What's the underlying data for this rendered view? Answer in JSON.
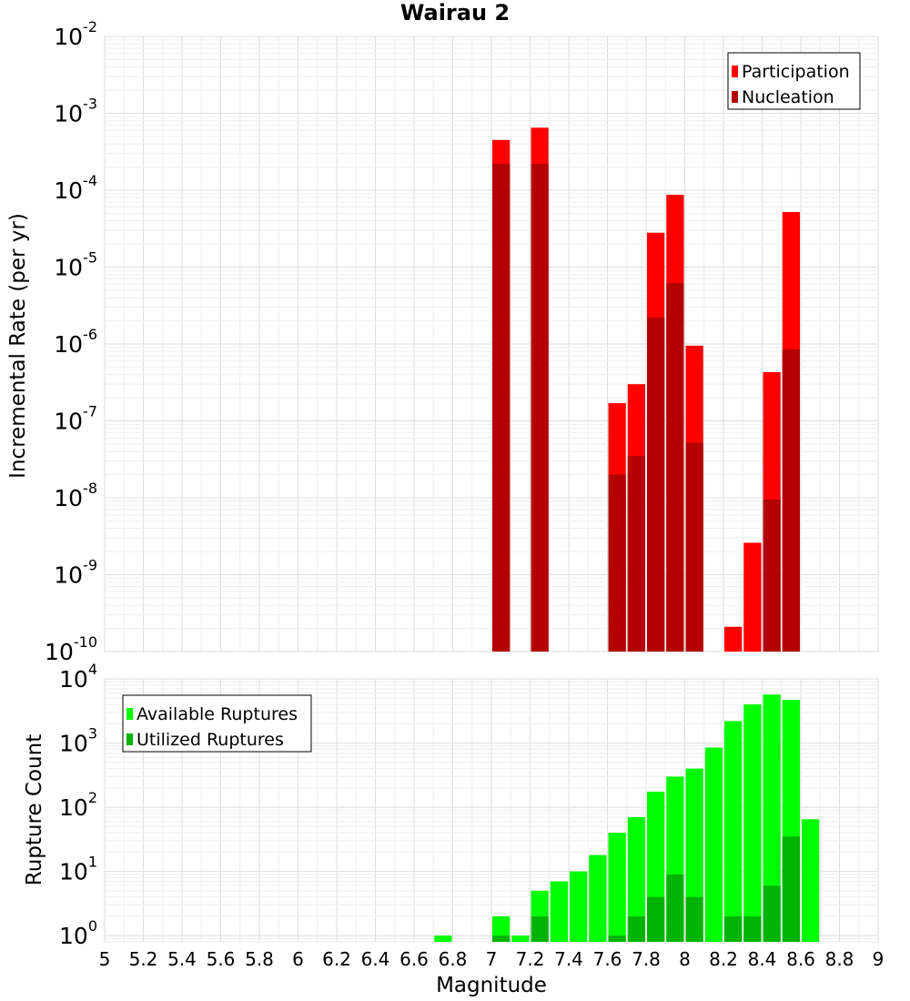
{
  "chart_data": [
    {
      "type": "bar",
      "title": "Wairau 2",
      "xlabel": "",
      "ylabel": "Incremental Rate (per yr)",
      "y_scale": "log",
      "ylim": [
        1e-10,
        0.01
      ],
      "y_ticks": [
        {
          "base": "10",
          "exp": "-2"
        },
        {
          "base": "10",
          "exp": "-3"
        },
        {
          "base": "10",
          "exp": "-4"
        },
        {
          "base": "10",
          "exp": "-5"
        },
        {
          "base": "10",
          "exp": "-6"
        },
        {
          "base": "10",
          "exp": "-7"
        },
        {
          "base": "10",
          "exp": "-8"
        },
        {
          "base": "10",
          "exp": "-9"
        },
        {
          "base": "10",
          "exp": "-10"
        }
      ],
      "xlim": [
        5,
        9
      ],
      "grid": true,
      "legend_position": "top-right",
      "series": [
        {
          "name": "Participation",
          "color": "#ff0000",
          "points": [
            {
              "x": 7.05,
              "y": 0.00045
            },
            {
              "x": 7.25,
              "y": 0.00065
            },
            {
              "x": 7.65,
              "y": 1.7e-07
            },
            {
              "x": 7.75,
              "y": 3e-07
            },
            {
              "x": 7.85,
              "y": 2.8e-05
            },
            {
              "x": 7.95,
              "y": 8.7e-05
            },
            {
              "x": 8.05,
              "y": 9.5e-07
            },
            {
              "x": 8.25,
              "y": 2.1e-10
            },
            {
              "x": 8.35,
              "y": 2.6e-09
            },
            {
              "x": 8.45,
              "y": 4.3e-07
            },
            {
              "x": 8.55,
              "y": 5.2e-05
            }
          ]
        },
        {
          "name": "Nucleation",
          "color": "#b30000",
          "points": [
            {
              "x": 7.05,
              "y": 0.00022
            },
            {
              "x": 7.25,
              "y": 0.00022
            },
            {
              "x": 7.65,
              "y": 2e-08
            },
            {
              "x": 7.75,
              "y": 3.5e-08
            },
            {
              "x": 7.85,
              "y": 2.2e-06
            },
            {
              "x": 7.95,
              "y": 6.2e-06
            },
            {
              "x": 8.05,
              "y": 5.2e-08
            },
            {
              "x": 8.45,
              "y": 9.5e-09
            },
            {
              "x": 8.55,
              "y": 8.5e-07
            }
          ]
        }
      ]
    },
    {
      "type": "bar",
      "title": "",
      "xlabel": "Magnitude",
      "ylabel": "Rupture Count",
      "y_scale": "log",
      "ylim": [
        0.8,
        10000
      ],
      "y_ticks": [
        {
          "value": 10000,
          "base": "10",
          "exp": "4"
        },
        {
          "value": 1000,
          "base": "10",
          "exp": "3"
        },
        {
          "value": 100,
          "base": "10",
          "exp": "2"
        },
        {
          "value": 10,
          "base": "10",
          "exp": "1"
        },
        {
          "value": 1,
          "base": "10",
          "exp": "0"
        }
      ],
      "xlim": [
        5,
        9
      ],
      "x_ticks": [
        "5",
        "5.2",
        "5.4",
        "5.6",
        "5.8",
        "6",
        "6.2",
        "6.4",
        "6.6",
        "6.8",
        "7",
        "7.2",
        "7.4",
        "7.6",
        "7.8",
        "8",
        "8.2",
        "8.4",
        "8.6",
        "8.8",
        "9"
      ],
      "grid": true,
      "legend_position": "top-left",
      "series": [
        {
          "name": "Available Ruptures",
          "color": "#00ff00",
          "points": [
            {
              "x": 6.75,
              "y": 1
            },
            {
              "x": 7.05,
              "y": 2
            },
            {
              "x": 7.15,
              "y": 1
            },
            {
              "x": 7.25,
              "y": 5
            },
            {
              "x": 7.35,
              "y": 7
            },
            {
              "x": 7.45,
              "y": 10
            },
            {
              "x": 7.55,
              "y": 18
            },
            {
              "x": 7.65,
              "y": 40
            },
            {
              "x": 7.75,
              "y": 70
            },
            {
              "x": 7.85,
              "y": 175
            },
            {
              "x": 7.95,
              "y": 300
            },
            {
              "x": 8.05,
              "y": 400
            },
            {
              "x": 8.15,
              "y": 850
            },
            {
              "x": 8.25,
              "y": 2200
            },
            {
              "x": 8.35,
              "y": 4000
            },
            {
              "x": 8.45,
              "y": 5700
            },
            {
              "x": 8.55,
              "y": 4700
            },
            {
              "x": 8.65,
              "y": 65
            }
          ]
        },
        {
          "name": "Utilized Ruptures",
          "color": "#00b300",
          "points": [
            {
              "x": 7.05,
              "y": 1
            },
            {
              "x": 7.25,
              "y": 2
            },
            {
              "x": 7.65,
              "y": 1
            },
            {
              "x": 7.75,
              "y": 2
            },
            {
              "x": 7.85,
              "y": 4
            },
            {
              "x": 7.95,
              "y": 9
            },
            {
              "x": 8.05,
              "y": 4
            },
            {
              "x": 8.25,
              "y": 2
            },
            {
              "x": 8.35,
              "y": 2
            },
            {
              "x": 8.45,
              "y": 6
            },
            {
              "x": 8.55,
              "y": 35
            }
          ]
        }
      ]
    }
  ]
}
